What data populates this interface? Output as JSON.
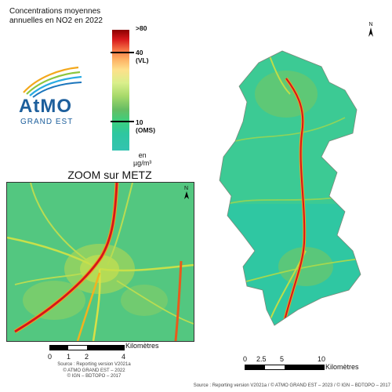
{
  "title": {
    "line1": "Concentrations moyennes",
    "line2": "annuelles en NO2 en 2022"
  },
  "legend": {
    "max_label": ">80",
    "vl_value": "40",
    "vl_label": "(VL)",
    "oms_value": "10",
    "oms_label": "(OMS)",
    "unit_line1": "en",
    "unit_line2": "µg/m³"
  },
  "logo": {
    "brand": "AtMO",
    "subtitle": "GRAND EST"
  },
  "zoom": {
    "title": "ZOOM sur METZ",
    "scale_ticks": [
      "0",
      "1",
      "2",
      "4"
    ],
    "scale_unit": "Kilomètres",
    "source_lines": [
      "Source : Reporting version V2021a",
      "© ATMO GRAND EST – 2022",
      "© IGN – BDTOPO – 2017"
    ]
  },
  "main": {
    "scale_ticks": [
      "0",
      "2.5",
      "5",
      "10"
    ],
    "scale_unit": "Kilomètres",
    "source": "Source : Reporting version V2021a / © ATMO GRAND EST – 2023 / © IGN – BDTOPO – 2017"
  },
  "north": "N"
}
